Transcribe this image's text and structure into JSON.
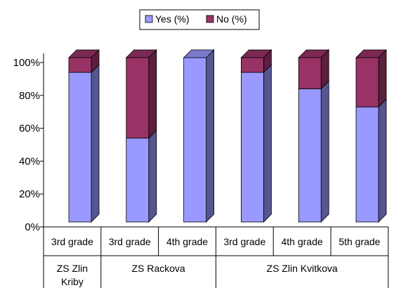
{
  "chart_data": {
    "type": "bar",
    "stacked": true,
    "three_d": true,
    "categories": [
      "3rd grade",
      "3rd grade",
      "4th grade",
      "3rd grade",
      "4th grade",
      "5th grade"
    ],
    "groups": [
      {
        "label": "ZS Zlin Kriby",
        "span": 1
      },
      {
        "label": "ZS Rackova",
        "span": 2
      },
      {
        "label": "ZS Zlin Kvitkova",
        "span": 3
      }
    ],
    "series": [
      {
        "name": "Yes (%)",
        "values": [
          91,
          51,
          100,
          91,
          81,
          70
        ]
      },
      {
        "name": "No (%)",
        "values": [
          9,
          49,
          0,
          9,
          19,
          30
        ]
      }
    ],
    "y_ticks": [
      "0%",
      "20%",
      "40%",
      "60%",
      "80%",
      "100%"
    ],
    "ylim": [
      0,
      100
    ],
    "legend_position": "top",
    "grid": false,
    "colors": {
      "yes_front": "#9999ff",
      "yes_side": "#55558f",
      "yes_top": "#7a7acc",
      "no_front": "#993366",
      "no_side": "#5c1f3d",
      "no_top": "#7a2952",
      "axis": "#000000"
    }
  }
}
